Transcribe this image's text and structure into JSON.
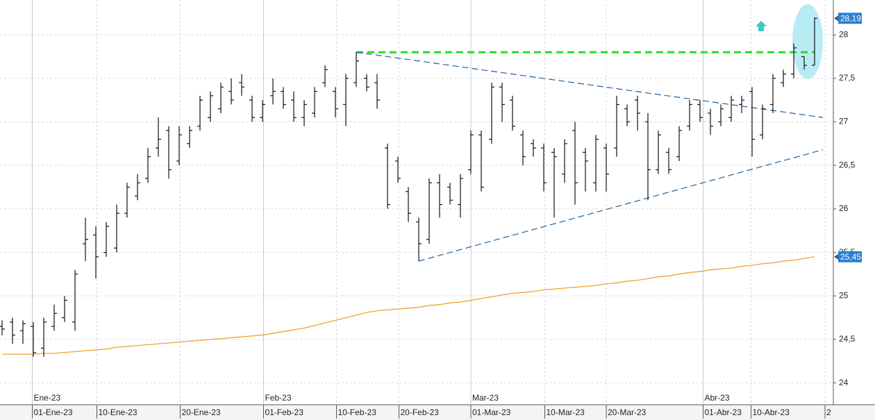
{
  "chart_data": {
    "type": "ohlc",
    "open": [
      24.65,
      24.7,
      24.6,
      24.65,
      24.4,
      24.65,
      24.75,
      24.7,
      25.6,
      25.7,
      25.5,
      25.55,
      25.95,
      26.15,
      26.35,
      26.7,
      26.9,
      26.55,
      26.75,
      26.95,
      27.05,
      27.15,
      27.35,
      27.45,
      27.25,
      27.05,
      27.3,
      27.35,
      27.25,
      27.05,
      27.1,
      27.45,
      27.35,
      27.2,
      27.45,
      27.5,
      27.45,
      26.7,
      26.55,
      26.2,
      25.85,
      25.65,
      26.3,
      26.25,
      26.05,
      26.45,
      26.85,
      26.8,
      27.4,
      27.25,
      26.85,
      26.75,
      26.7,
      26.65,
      26.4,
      26.9,
      26.65,
      26.3,
      26.7,
      26.7,
      27.15,
      27.25,
      27.0,
      26.45,
      26.65,
      26.6,
      26.95,
      27.2,
      27.1,
      27.0,
      27.05,
      27.2,
      27.35,
      26.85,
      27.2,
      27.45,
      27.55,
      27.75,
      27.65
    ],
    "high": [
      24.72,
      24.75,
      24.72,
      24.7,
      24.75,
      24.9,
      25.0,
      25.3,
      25.9,
      25.8,
      25.85,
      26.05,
      26.3,
      26.4,
      26.7,
      27.05,
      26.95,
      26.95,
      26.95,
      27.3,
      27.35,
      27.45,
      27.5,
      27.55,
      27.3,
      27.25,
      27.5,
      27.4,
      27.35,
      27.25,
      27.4,
      27.65,
      27.4,
      27.55,
      27.8,
      27.55,
      27.55,
      26.75,
      26.6,
      26.25,
      25.9,
      26.35,
      26.4,
      26.3,
      26.4,
      26.9,
      26.9,
      27.45,
      27.45,
      27.3,
      26.9,
      26.8,
      26.75,
      26.7,
      26.8,
      27.0,
      26.7,
      26.85,
      26.75,
      27.3,
      27.2,
      27.3,
      27.1,
      26.9,
      26.7,
      26.95,
      27.25,
      27.25,
      27.15,
      27.2,
      27.3,
      27.3,
      27.4,
      27.2,
      27.55,
      27.6,
      27.9,
      27.75,
      28.2
    ],
    "low": [
      24.55,
      24.45,
      24.45,
      24.3,
      24.3,
      24.6,
      24.7,
      24.6,
      25.4,
      25.2,
      25.45,
      25.5,
      25.9,
      26.1,
      26.3,
      26.6,
      26.35,
      26.5,
      26.7,
      26.9,
      27.0,
      27.1,
      27.2,
      27.3,
      27.0,
      27.0,
      27.2,
      27.15,
      27.0,
      26.95,
      27.05,
      27.4,
      27.05,
      26.95,
      27.4,
      27.35,
      27.15,
      26.0,
      26.3,
      25.85,
      25.4,
      25.6,
      25.9,
      26.05,
      25.9,
      26.4,
      26.2,
      26.75,
      27.0,
      26.9,
      26.5,
      26.6,
      26.2,
      25.9,
      26.3,
      26.05,
      26.2,
      26.2,
      26.2,
      26.6,
      26.95,
      26.9,
      26.1,
      26.4,
      26.4,
      26.55,
      26.9,
      27.0,
      26.85,
      26.95,
      27.0,
      27.1,
      26.6,
      26.8,
      27.1,
      27.4,
      27.5,
      27.6,
      27.65
    ],
    "close": [
      24.62,
      24.55,
      24.68,
      24.35,
      24.7,
      24.8,
      24.95,
      25.25,
      25.65,
      25.45,
      25.8,
      25.95,
      26.25,
      26.3,
      26.6,
      26.8,
      26.45,
      26.85,
      26.9,
      27.25,
      27.3,
      27.4,
      27.25,
      27.4,
      27.05,
      27.2,
      27.35,
      27.2,
      27.05,
      27.2,
      27.35,
      27.6,
      27.15,
      27.5,
      27.7,
      27.4,
      27.25,
      26.05,
      26.35,
      25.95,
      25.6,
      26.3,
      26.05,
      26.1,
      26.35,
      26.85,
      26.25,
      27.4,
      27.2,
      26.95,
      26.6,
      26.7,
      26.3,
      26.6,
      26.75,
      26.3,
      26.55,
      26.8,
      26.4,
      27.2,
      27.0,
      27.1,
      26.45,
      26.85,
      26.45,
      26.9,
      27.2,
      27.05,
      26.95,
      27.15,
      27.25,
      27.25,
      26.8,
      27.15,
      27.5,
      27.55,
      27.85,
      27.65,
      28.19
    ],
    "bar_color": "#111111",
    "moving_average": {
      "color": "#f0a030",
      "values": [
        24.33,
        24.33,
        24.33,
        24.33,
        24.34,
        24.34,
        24.35,
        24.36,
        24.37,
        24.38,
        24.39,
        24.41,
        24.42,
        24.43,
        24.44,
        24.45,
        24.46,
        24.47,
        24.48,
        24.49,
        24.5,
        24.51,
        24.52,
        24.53,
        24.54,
        24.55,
        24.57,
        24.59,
        24.61,
        24.63,
        24.66,
        24.69,
        24.72,
        24.75,
        24.78,
        24.81,
        24.83,
        24.84,
        24.85,
        24.86,
        24.87,
        24.89,
        24.9,
        24.92,
        24.93,
        24.95,
        24.97,
        24.99,
        25.01,
        25.03,
        25.04,
        25.05,
        25.07,
        25.08,
        25.09,
        25.1,
        25.11,
        25.12,
        25.14,
        25.15,
        25.17,
        25.18,
        25.2,
        25.22,
        25.23,
        25.25,
        25.27,
        25.28,
        25.3,
        25.31,
        25.32,
        25.34,
        25.35,
        25.37,
        25.38,
        25.4,
        25.41,
        25.43,
        25.45
      ]
    },
    "trend_lines": [
      {
        "x": [
          34,
          78
        ],
        "y": [
          27.8,
          27.8
        ],
        "color": "#22dd22",
        "width": 3,
        "dash": "10 6"
      },
      {
        "x": [
          34,
          78.8
        ],
        "y": [
          27.8,
          27.05
        ],
        "color": "#1f5f9f",
        "width": 1.2,
        "dash": "9 5"
      },
      {
        "x": [
          40,
          78.8
        ],
        "y": [
          25.4,
          26.68
        ],
        "color": "#1f5f9f",
        "width": 1.2,
        "dash": "9 5"
      }
    ],
    "xlim": [
      -0.2,
      79.8
    ],
    "ylim": [
      23.75,
      28.4
    ],
    "yticks": [
      24,
      {
        "value": 24.5,
        "label": "24,5"
      },
      25,
      {
        "value": 25.5,
        "label": "25,5"
      },
      26,
      {
        "value": 26.5,
        "label": "26,5"
      },
      27,
      {
        "value": 27.5,
        "label": "27,5"
      },
      28
    ],
    "xticks": [
      {
        "value": 2.9,
        "label": "01-Ene-23"
      },
      {
        "value": 9.1,
        "label": "10-Ene-23"
      },
      {
        "value": 17.1,
        "label": "20-Ene-23"
      },
      {
        "value": 25.1,
        "label": "01-Feb-23"
      },
      {
        "value": 32.1,
        "label": "10-Feb-23"
      },
      {
        "value": 38.1,
        "label": "20-Feb-23"
      },
      {
        "value": 45,
        "label": "01-Mar-23"
      },
      {
        "value": 52.1,
        "label": "10-Mar-23"
      },
      {
        "value": 58,
        "label": "20-Mar-23"
      },
      {
        "value": 67.3,
        "label": "01-Abr-23"
      },
      {
        "value": 71.9,
        "label": "10-Abr-23"
      },
      {
        "value": 79,
        "label": "2"
      }
    ],
    "month_ticks": [
      {
        "value": 2.9,
        "label": "Ene-23"
      },
      {
        "value": 25.1,
        "label": "Feb-23"
      },
      {
        "value": 45,
        "label": "Mar-23"
      },
      {
        "value": 67.3,
        "label": "Abr-23"
      }
    ],
    "price_tags": [
      {
        "value": 28.19,
        "label": "28,19",
        "color": "#2a7fd4"
      },
      {
        "value": 25.45,
        "label": "25,45",
        "color": "#2a7fd4"
      }
    ],
    "grid": true
  }
}
